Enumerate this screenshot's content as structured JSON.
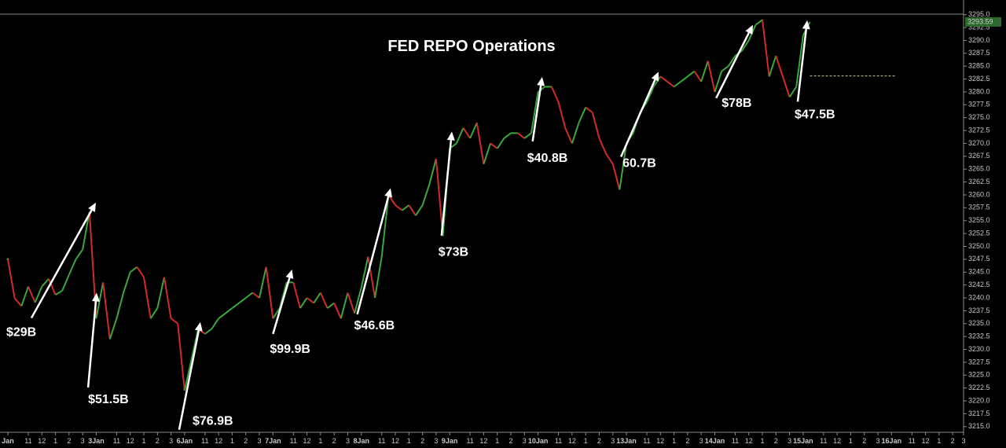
{
  "chart_data": {
    "type": "line",
    "title": "FED REPO Operations",
    "up_color": "#3aa83a",
    "down_color": "#d42a2a",
    "x": [
      0,
      0.5,
      1,
      1.5,
      2,
      2.5,
      3,
      3.5,
      4,
      4.5,
      5,
      5.5,
      6,
      6.5,
      7,
      7.5,
      8,
      8.5,
      9,
      9.5,
      10,
      10.5,
      11,
      11.5,
      12,
      12.5,
      13,
      13.5,
      14,
      14.5,
      15,
      15.5,
      16,
      16.5,
      17,
      17.5,
      18,
      18.5,
      19,
      19.5,
      20,
      20.5,
      21,
      21.5,
      22,
      22.5,
      23,
      23.5,
      24,
      24.5,
      25,
      25.5,
      26,
      26.5,
      27,
      27.5,
      28,
      28.5,
      29,
      29.5,
      30,
      30.5,
      31,
      31.5,
      32,
      32.5,
      33,
      33.5,
      34,
      34.5,
      35,
      35.5,
      36,
      36.5,
      37,
      37.5,
      38,
      38.5,
      39,
      39.5,
      40,
      40.5,
      41,
      41.5,
      42,
      42.5,
      43,
      43.5,
      44,
      44.5,
      45,
      45.5,
      46,
      46.5,
      47,
      47.5,
      48,
      48.5,
      49,
      49.5,
      50,
      50.5,
      51,
      51.5,
      52,
      52.5,
      53,
      53.5,
      54,
      54.5,
      55,
      55.5,
      56,
      56.5,
      57,
      57.5,
      58,
      58.5,
      59
    ],
    "values": [
      3247.5,
      3239.9,
      3238.4,
      3242.2,
      3239.1,
      3242.2,
      3243.7,
      3240.6,
      3241.4,
      3244.5,
      3247.5,
      3249.4,
      3256.7,
      3236,
      3243,
      3232,
      3236,
      3241,
      3245,
      3246,
      3244,
      3236,
      3238,
      3244,
      3236,
      3235,
      3222,
      3228,
      3234,
      3233,
      3234,
      3236,
      3237,
      3238,
      3239,
      3240,
      3241,
      3240,
      3246,
      3236,
      3238,
      3243,
      3243,
      3238,
      3240,
      3239,
      3241,
      3238,
      3239,
      3236,
      3241,
      3237,
      3242,
      3248,
      3240,
      3248,
      3260,
      3258,
      3257,
      3258,
      3256,
      3258,
      3262,
      3267,
      3252,
      3269,
      3270,
      3273,
      3271,
      3274,
      3266,
      3270,
      3269,
      3271,
      3272,
      3272,
      3271,
      3272,
      3280,
      3281,
      3281,
      3278,
      3273,
      3270,
      3274,
      3277,
      3276,
      3271,
      3268,
      3266,
      3261,
      3270,
      3272,
      3276,
      3278,
      3281,
      3283,
      3282,
      3281,
      3282,
      3283,
      3284,
      3282,
      3286,
      3280,
      3284,
      3285,
      3287,
      3288,
      3290,
      3293,
      3294,
      3283,
      3287,
      3283,
      3279,
      3281,
      3291,
      3293.59
    ],
    "last_price": 3293.59,
    "hline": 3283.1,
    "xlim": [
      -0.58,
      70.3
    ],
    "ylim": [
      3213.9,
      3295.1
    ],
    "yticks": [
      {
        "value": 3215,
        "label": "3215.0"
      },
      {
        "value": 3217.5,
        "label": "3217.5"
      },
      {
        "value": 3220,
        "label": "3220.0"
      },
      {
        "value": 3222.5,
        "label": "3222.5"
      },
      {
        "value": 3225,
        "label": "3225.0"
      },
      {
        "value": 3227.5,
        "label": "3227.5"
      },
      {
        "value": 3230,
        "label": "3230.0"
      },
      {
        "value": 3232.5,
        "label": "3232.5"
      },
      {
        "value": 3235,
        "label": "3235.0"
      },
      {
        "value": 3237.5,
        "label": "3237.5"
      },
      {
        "value": 3240,
        "label": "3240.0"
      },
      {
        "value": 3242.5,
        "label": "3242.5"
      },
      {
        "value": 3245,
        "label": "3245.0"
      },
      {
        "value": 3247.5,
        "label": "3247.5"
      },
      {
        "value": 3250,
        "label": "3250.0"
      },
      {
        "value": 3252.5,
        "label": "3252.5"
      },
      {
        "value": 3255,
        "label": "3255.0"
      },
      {
        "value": 3257.5,
        "label": "3257.5"
      },
      {
        "value": 3260,
        "label": "3260.0"
      },
      {
        "value": 3262.5,
        "label": "3262.5"
      },
      {
        "value": 3265,
        "label": "3265.0"
      },
      {
        "value": 3267.5,
        "label": "3267.5"
      },
      {
        "value": 3270,
        "label": "3270.0"
      },
      {
        "value": 3272.5,
        "label": "3272.5"
      },
      {
        "value": 3275,
        "label": "3275.0"
      },
      {
        "value": 3277.5,
        "label": "3277.5"
      },
      {
        "value": 3280,
        "label": "3280.0"
      },
      {
        "value": 3282.5,
        "label": "3282.5"
      },
      {
        "value": 3285,
        "label": "3285.0"
      },
      {
        "value": 3287.5,
        "label": "3287.5"
      },
      {
        "value": 3290,
        "label": "3290.0"
      },
      {
        "value": 3292.5,
        "label": "3292.5"
      },
      {
        "value": 3295,
        "label": "3295.0"
      }
    ],
    "xticks": [
      {
        "value": 0,
        "label": "Jan"
      },
      {
        "value": 1.5,
        "label": "11"
      },
      {
        "value": 2.5,
        "label": "12"
      },
      {
        "value": 3.5,
        "label": "1"
      },
      {
        "value": 4.5,
        "label": "2"
      },
      {
        "value": 5.5,
        "label": "3"
      },
      {
        "value": 6.5,
        "label": "3Jan"
      },
      {
        "value": 8,
        "label": "11"
      },
      {
        "value": 9,
        "label": "12"
      },
      {
        "value": 10,
        "label": "1"
      },
      {
        "value": 11,
        "label": "2"
      },
      {
        "value": 12,
        "label": "3"
      },
      {
        "value": 13,
        "label": "6Jan"
      },
      {
        "value": 14.5,
        "label": "11"
      },
      {
        "value": 15.5,
        "label": "12"
      },
      {
        "value": 16.5,
        "label": "1"
      },
      {
        "value": 17.5,
        "label": "2"
      },
      {
        "value": 18.5,
        "label": "3"
      },
      {
        "value": 19.5,
        "label": "7Jan"
      },
      {
        "value": 21,
        "label": "11"
      },
      {
        "value": 22,
        "label": "12"
      },
      {
        "value": 23,
        "label": "1"
      },
      {
        "value": 24,
        "label": "2"
      },
      {
        "value": 25,
        "label": "3"
      },
      {
        "value": 26,
        "label": "8Jan"
      },
      {
        "value": 27.5,
        "label": "11"
      },
      {
        "value": 28.5,
        "label": "12"
      },
      {
        "value": 29.5,
        "label": "1"
      },
      {
        "value": 30.5,
        "label": "2"
      },
      {
        "value": 31.5,
        "label": "3"
      },
      {
        "value": 32.5,
        "label": "9Jan"
      },
      {
        "value": 34,
        "label": "11"
      },
      {
        "value": 35,
        "label": "12"
      },
      {
        "value": 36,
        "label": "1"
      },
      {
        "value": 37,
        "label": "2"
      },
      {
        "value": 38,
        "label": "3"
      },
      {
        "value": 39,
        "label": "10Jan"
      },
      {
        "value": 40.5,
        "label": "11"
      },
      {
        "value": 41.5,
        "label": "12"
      },
      {
        "value": 42.5,
        "label": "1"
      },
      {
        "value": 43.5,
        "label": "2"
      },
      {
        "value": 44.5,
        "label": "3"
      },
      {
        "value": 45.5,
        "label": "13Jan"
      },
      {
        "value": 47,
        "label": "11"
      },
      {
        "value": 48,
        "label": "12"
      },
      {
        "value": 49,
        "label": "1"
      },
      {
        "value": 50,
        "label": "2"
      },
      {
        "value": 51,
        "label": "3"
      },
      {
        "value": 52,
        "label": "14Jan"
      },
      {
        "value": 53.5,
        "label": "11"
      },
      {
        "value": 54.5,
        "label": "12"
      },
      {
        "value": 55.5,
        "label": "1"
      },
      {
        "value": 56.5,
        "label": "2"
      },
      {
        "value": 57.5,
        "label": "3"
      },
      {
        "value": 58.5,
        "label": "15Jan"
      },
      {
        "value": 60,
        "label": "11"
      },
      {
        "value": 61,
        "label": "12"
      },
      {
        "value": 62,
        "label": "1"
      },
      {
        "value": 63,
        "label": "2"
      },
      {
        "value": 64,
        "label": "3"
      },
      {
        "value": 65,
        "label": "16Jan"
      },
      {
        "value": 66.5,
        "label": "11"
      },
      {
        "value": 67.5,
        "label": "12"
      },
      {
        "value": 68.5,
        "label": "1"
      },
      {
        "value": 69.5,
        "label": "2"
      },
      {
        "value": 70.3,
        "label": "3"
      }
    ],
    "annotations": [
      {
        "text": "$29B",
        "from": [
          1.73,
          3236.1
        ],
        "to": [
          6.47,
          3258.5
        ]
      },
      {
        "text": "$51.5B",
        "from": [
          5.9,
          3222.6
        ],
        "to": [
          6.53,
          3241.0
        ]
      },
      {
        "text": "$76.9B",
        "from": [
          12.6,
          3214.4
        ],
        "to": [
          14.16,
          3235.3
        ]
      },
      {
        "text": "$99.9B",
        "from": [
          19.5,
          3233.0
        ],
        "to": [
          20.9,
          3245.5
        ]
      },
      {
        "text": "$46.6B",
        "from": [
          25.7,
          3236.8
        ],
        "to": [
          28.15,
          3261.3
        ]
      },
      {
        "text": "$73B",
        "from": [
          31.9,
          3252.1
        ],
        "to": [
          32.66,
          3272.3
        ]
      },
      {
        "text": "$40.8B",
        "from": [
          38.6,
          3270.4
        ],
        "to": [
          39.3,
          3282.9
        ]
      },
      {
        "text": "60.7B",
        "from": [
          45.1,
          3267.4
        ],
        "to": [
          47.86,
          3283.9
        ]
      },
      {
        "text": "$78B",
        "from": [
          52.1,
          3278.8
        ],
        "to": [
          54.8,
          3293.0
        ]
      },
      {
        "text": "$47.5B",
        "from": [
          58.1,
          3278.1
        ],
        "to": [
          58.8,
          3293.9
        ]
      }
    ]
  }
}
